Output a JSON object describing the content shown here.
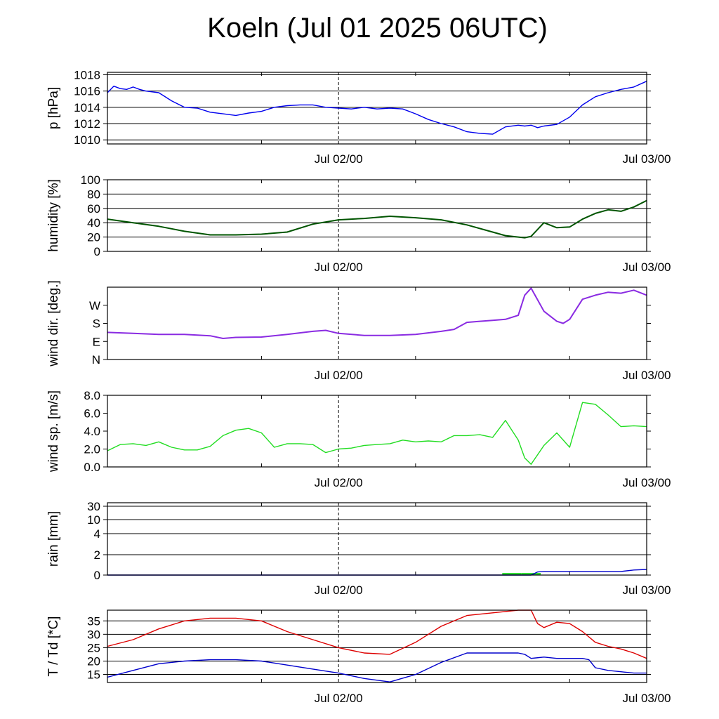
{
  "title": "Koeln (Jul 01 2025 06UTC)",
  "x_tick_labels": [
    "Jul 02/00",
    "Jul 03/00"
  ],
  "chart_data": [
    {
      "type": "line",
      "ylabel": "p [hPa]",
      "ylim": [
        1009.5,
        1018.3
      ],
      "yticks": [
        1010,
        1012,
        1014,
        1016,
        1018
      ],
      "ytick_labels": [
        "1010",
        "1012",
        "1014",
        "1016",
        "1018"
      ],
      "grid": true,
      "xlim_hours": [
        0,
        42
      ],
      "x_tick_labels": [
        "Jul 02/00",
        "Jul 03/00"
      ],
      "series": [
        {
          "color": "#0000ee",
          "x": [
            0,
            0.5,
            1,
            1.5,
            2,
            2.5,
            3,
            4,
            5,
            6,
            7,
            8,
            9,
            10,
            11,
            12,
            13,
            14,
            15,
            16,
            17,
            18,
            19,
            20,
            21,
            22,
            23,
            24,
            25,
            26,
            27,
            28,
            29,
            30,
            31,
            32,
            32.5,
            33,
            33.5,
            34,
            35,
            36,
            37,
            38,
            39,
            40,
            41,
            42
          ],
          "y": [
            1015.8,
            1016.6,
            1016.3,
            1016.2,
            1016.5,
            1016.2,
            1016.0,
            1015.8,
            1014.8,
            1014.0,
            1013.9,
            1013.4,
            1013.2,
            1013.0,
            1013.3,
            1013.5,
            1014.0,
            1014.2,
            1014.3,
            1014.3,
            1014.0,
            1013.9,
            1013.8,
            1014.0,
            1013.8,
            1013.9,
            1013.8,
            1013.2,
            1012.5,
            1012.0,
            1011.6,
            1011.0,
            1010.8,
            1010.7,
            1011.6,
            1011.8,
            1011.7,
            1011.8,
            1011.5,
            1011.7,
            1011.9,
            1012.8,
            1014.3,
            1015.3,
            1015.8,
            1016.2,
            1016.5,
            1017.2
          ]
        }
      ]
    },
    {
      "type": "line",
      "ylabel": "humidity [%]",
      "ylim": [
        0,
        100
      ],
      "yticks": [
        0,
        20,
        40,
        60,
        80,
        100
      ],
      "ytick_labels": [
        "0",
        "20",
        "40",
        "60",
        "80",
        "100"
      ],
      "grid": true,
      "xlim_hours": [
        0,
        42
      ],
      "x_tick_labels": [
        "Jul 02/00",
        "Jul 03/00"
      ],
      "series": [
        {
          "color": "#005500",
          "x": [
            0,
            2,
            4,
            6,
            8,
            10,
            12,
            14,
            16,
            18,
            20,
            22,
            24,
            26,
            28,
            30,
            31,
            32,
            32.5,
            33,
            34,
            35,
            36,
            37,
            38,
            39,
            40,
            41,
            42
          ],
          "y": [
            45,
            40,
            35,
            28,
            23,
            23,
            24,
            27,
            38,
            44,
            46,
            49,
            47,
            44,
            37,
            27,
            22,
            20,
            19,
            21,
            40,
            33,
            34,
            45,
            53,
            58,
            56,
            62,
            71
          ]
        }
      ]
    },
    {
      "type": "line",
      "ylabel": "wind dir. [deg.]",
      "ylim": [
        0,
        360
      ],
      "yticks": [
        0,
        90,
        180,
        270
      ],
      "ytick_labels": [
        "N",
        "E",
        "S",
        "W"
      ],
      "grid": false,
      "xlim_hours": [
        0,
        42
      ],
      "x_tick_labels": [
        "Jul 02/00",
        "Jul 03/00"
      ],
      "series": [
        {
          "color": "#8a2be2",
          "x": [
            0,
            2,
            4,
            6,
            8,
            9,
            10,
            12,
            14,
            16,
            17,
            18,
            20,
            22,
            24,
            26,
            27,
            28,
            29,
            30,
            31,
            32,
            32.5,
            33,
            34,
            35,
            35.5,
            36,
            37,
            38,
            39,
            40,
            41,
            42
          ],
          "y": [
            135,
            130,
            125,
            125,
            118,
            105,
            110,
            112,
            125,
            140,
            145,
            130,
            120,
            120,
            125,
            140,
            150,
            185,
            190,
            195,
            200,
            220,
            320,
            355,
            240,
            190,
            180,
            200,
            300,
            320,
            335,
            330,
            345,
            320
          ]
        }
      ]
    },
    {
      "type": "line",
      "ylabel": "wind sp. [m/s]",
      "ylim": [
        0,
        8
      ],
      "yticks": [
        0,
        2,
        4,
        6,
        8
      ],
      "ytick_labels": [
        "0.0",
        "2.0",
        "4.0",
        "6.0",
        "8.0"
      ],
      "grid": false,
      "xlim_hours": [
        0,
        42
      ],
      "x_tick_labels": [
        "Jul 02/00",
        "Jul 03/00"
      ],
      "series": [
        {
          "color": "#22dd22",
          "x": [
            0,
            1,
            2,
            3,
            4,
            5,
            6,
            7,
            8,
            9,
            10,
            11,
            12,
            13,
            14,
            15,
            16,
            17,
            18,
            19,
            20,
            21,
            22,
            23,
            24,
            25,
            26,
            27,
            28,
            29,
            30,
            31,
            32,
            32.5,
            33,
            34,
            35,
            36,
            37,
            38,
            39,
            40,
            41,
            42
          ],
          "y": [
            1.8,
            2.5,
            2.6,
            2.4,
            2.8,
            2.2,
            1.9,
            1.9,
            2.3,
            3.5,
            4.1,
            4.3,
            3.8,
            2.2,
            2.6,
            2.6,
            2.5,
            1.6,
            2.0,
            2.1,
            2.4,
            2.5,
            2.6,
            3.0,
            2.8,
            2.9,
            2.8,
            3.5,
            3.5,
            3.6,
            3.3,
            5.2,
            3.0,
            1.0,
            0.3,
            2.4,
            3.8,
            2.2,
            7.2,
            7.0,
            5.8,
            4.5,
            4.6,
            4.5
          ]
        }
      ]
    },
    {
      "type": "bar",
      "ylabel": "rain [mm]",
      "ylim": [
        0,
        30
      ],
      "yticks": [
        0,
        2,
        4,
        10,
        30
      ],
      "ytick_labels": [
        "0",
        "2",
        "4",
        "10",
        "30"
      ],
      "grid": true,
      "xlim_hours": [
        0,
        42
      ],
      "x_tick_labels": [
        "Jul 02/00",
        "Jul 03/00"
      ],
      "series": [
        {
          "type": "bar",
          "color": "#33dd33",
          "x": [
            31.5,
            33
          ],
          "values": [
            0.2,
            0.2
          ]
        },
        {
          "type": "line",
          "color": "#0000cc",
          "x": [
            0,
            33,
            33.5,
            34,
            40,
            41,
            42
          ],
          "y": [
            0,
            0,
            0.3,
            0.35,
            0.35,
            0.5,
            0.55
          ]
        }
      ]
    },
    {
      "type": "line",
      "ylabel": "T / Td [*C]",
      "ylim": [
        12,
        39
      ],
      "yticks": [
        15,
        20,
        25,
        30,
        35
      ],
      "ytick_labels": [
        "15",
        "20",
        "25",
        "30",
        "35"
      ],
      "grid": true,
      "xlim_hours": [
        0,
        42
      ],
      "x_tick_labels": [
        "Jul 02/00",
        "Jul 03/00"
      ],
      "series": [
        {
          "color": "#dd0000",
          "x": [
            0,
            2,
            4,
            6,
            8,
            10,
            12,
            14,
            16,
            18,
            20,
            22,
            24,
            26,
            28,
            30,
            32,
            33,
            33.5,
            34,
            35,
            36,
            37,
            38,
            39,
            40,
            41,
            42
          ],
          "y": [
            25.5,
            28,
            32,
            35,
            36,
            36,
            35,
            31,
            28,
            25,
            23,
            22.5,
            27,
            33,
            37,
            38,
            39,
            39,
            34,
            32.5,
            34.5,
            34,
            31,
            27,
            25.5,
            24.5,
            23,
            21
          ]
        },
        {
          "color": "#0000cc",
          "x": [
            0,
            2,
            4,
            6,
            8,
            10,
            12,
            14,
            16,
            18,
            20,
            22,
            24,
            26,
            28,
            30,
            32,
            32.5,
            33,
            34,
            35,
            36,
            37,
            37.5,
            38,
            39,
            40,
            41,
            42
          ],
          "y": [
            14,
            16.5,
            19,
            20,
            20.5,
            20.5,
            20,
            18.5,
            17,
            15.5,
            13.5,
            12.2,
            15,
            19.5,
            23,
            23,
            23,
            22.5,
            21,
            21.5,
            21,
            21,
            21,
            20.5,
            17.5,
            16.5,
            16,
            15.5,
            15.5
          ]
        }
      ]
    }
  ]
}
